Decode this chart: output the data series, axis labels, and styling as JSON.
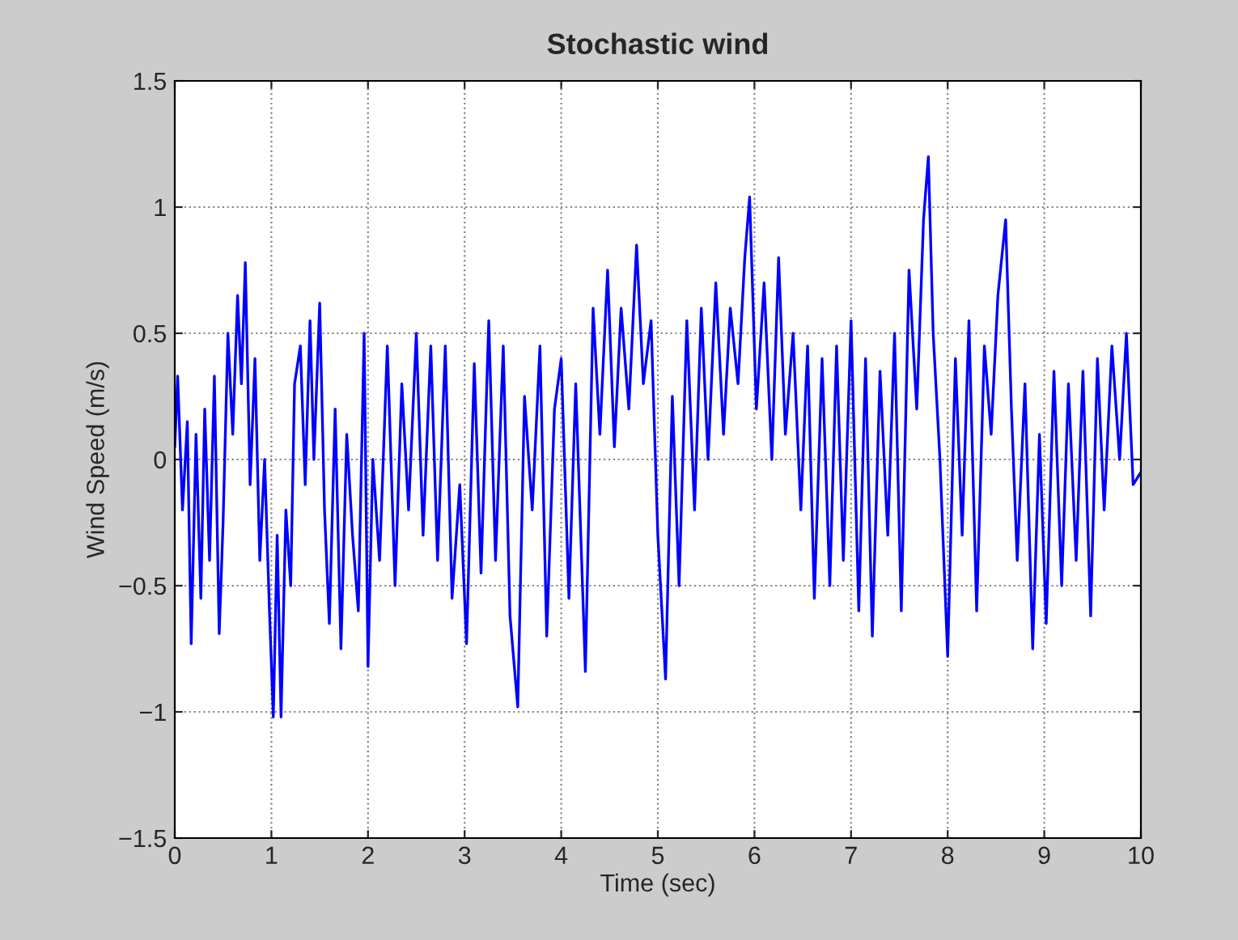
{
  "chart_data": {
    "type": "line",
    "title": "Stochastic wind",
    "xlabel": "Time (sec)",
    "ylabel": "Wind Speed (m/s)",
    "x": [
      0,
      0.03,
      0.08,
      0.13,
      0.17,
      0.22,
      0.27,
      0.31,
      0.36,
      0.41,
      0.46,
      0.5,
      0.55,
      0.6,
      0.65,
      0.69,
      0.73,
      0.78,
      0.83,
      0.88,
      0.93,
      0.98,
      1.02,
      1.06,
      1.1,
      1.15,
      1.2,
      1.24,
      1.3,
      1.35,
      1.4,
      1.44,
      1.5,
      1.55,
      1.6,
      1.66,
      1.72,
      1.78,
      1.84,
      1.9,
      1.96,
      2.0,
      2.05,
      2.12,
      2.2,
      2.28,
      2.35,
      2.42,
      2.5,
      2.57,
      2.65,
      2.72,
      2.8,
      2.87,
      2.95,
      3.02,
      3.1,
      3.17,
      3.25,
      3.32,
      3.4,
      3.47,
      3.55,
      3.62,
      3.7,
      3.78,
      3.85,
      3.93,
      4.0,
      4.08,
      4.15,
      4.25,
      4.33,
      4.4,
      4.48,
      4.55,
      4.62,
      4.7,
      4.78,
      4.85,
      4.93,
      5.0,
      5.08,
      5.15,
      5.22,
      5.3,
      5.38,
      5.45,
      5.52,
      5.6,
      5.68,
      5.75,
      5.83,
      5.9,
      5.95,
      6.02,
      6.1,
      6.18,
      6.25,
      6.32,
      6.4,
      6.48,
      6.55,
      6.62,
      6.7,
      6.78,
      6.85,
      6.92,
      7.0,
      7.08,
      7.15,
      7.22,
      7.3,
      7.38,
      7.45,
      7.52,
      7.6,
      7.68,
      7.75,
      7.8,
      7.85,
      7.92,
      8.0,
      8.08,
      8.15,
      8.22,
      8.3,
      8.38,
      8.45,
      8.52,
      8.6,
      8.66,
      8.72,
      8.8,
      8.88,
      8.95,
      9.02,
      9.1,
      9.18,
      9.25,
      9.33,
      9.4,
      9.48,
      9.55,
      9.62,
      9.7,
      9.78,
      9.85,
      9.92,
      10
    ],
    "series": [
      {
        "color": "#0000ff",
        "values": [
          0.05,
          0.33,
          -0.2,
          0.15,
          -0.73,
          0.1,
          -0.55,
          0.2,
          -0.4,
          0.33,
          -0.69,
          -0.25,
          0.5,
          0.1,
          0.65,
          0.3,
          0.78,
          -0.1,
          0.4,
          -0.4,
          0.0,
          -0.6,
          -1.02,
          -0.3,
          -1.02,
          -0.2,
          -0.5,
          0.3,
          0.45,
          -0.1,
          0.55,
          0.0,
          0.62,
          -0.2,
          -0.65,
          0.2,
          -0.75,
          0.1,
          -0.3,
          -0.6,
          0.5,
          -0.82,
          0.0,
          -0.4,
          0.45,
          -0.5,
          0.3,
          -0.2,
          0.5,
          -0.3,
          0.45,
          -0.4,
          0.45,
          -0.55,
          -0.1,
          -0.73,
          0.38,
          -0.45,
          0.55,
          -0.4,
          0.45,
          -0.62,
          -0.98,
          0.25,
          -0.2,
          0.45,
          -0.7,
          0.2,
          0.4,
          -0.55,
          0.3,
          -0.84,
          0.6,
          0.1,
          0.75,
          0.05,
          0.6,
          0.2,
          0.85,
          0.3,
          0.55,
          -0.3,
          -0.87,
          0.25,
          -0.5,
          0.55,
          -0.2,
          0.6,
          0.0,
          0.7,
          0.1,
          0.6,
          0.3,
          0.8,
          1.04,
          0.2,
          0.7,
          0.0,
          0.8,
          0.1,
          0.5,
          -0.2,
          0.45,
          -0.55,
          0.4,
          -0.5,
          0.45,
          -0.4,
          0.55,
          -0.6,
          0.4,
          -0.7,
          0.35,
          -0.3,
          0.5,
          -0.6,
          0.75,
          0.2,
          0.95,
          1.2,
          0.5,
          0.0,
          -0.78,
          0.4,
          -0.3,
          0.55,
          -0.6,
          0.45,
          0.1,
          0.65,
          0.95,
          0.2,
          -0.4,
          0.3,
          -0.75,
          0.1,
          -0.65,
          0.35,
          -0.5,
          0.3,
          -0.4,
          0.35,
          -0.62,
          0.4,
          -0.2,
          0.45,
          0.0,
          0.5,
          -0.1,
          -0.05
        ]
      }
    ],
    "xlim": [
      0,
      10
    ],
    "ylim": [
      -1.5,
      1.5
    ],
    "xticks": [
      0,
      1,
      2,
      3,
      4,
      5,
      6,
      7,
      8,
      9,
      10
    ],
    "yticks": [
      {
        "value": -1.5,
        "label": "−1.5"
      },
      {
        "value": -1,
        "label": "−1"
      },
      {
        "value": -0.5,
        "label": "−0.5"
      },
      0,
      0.5,
      1,
      1.5
    ],
    "grid": true,
    "marker": "none",
    "line_style": "solid",
    "legend": false
  }
}
